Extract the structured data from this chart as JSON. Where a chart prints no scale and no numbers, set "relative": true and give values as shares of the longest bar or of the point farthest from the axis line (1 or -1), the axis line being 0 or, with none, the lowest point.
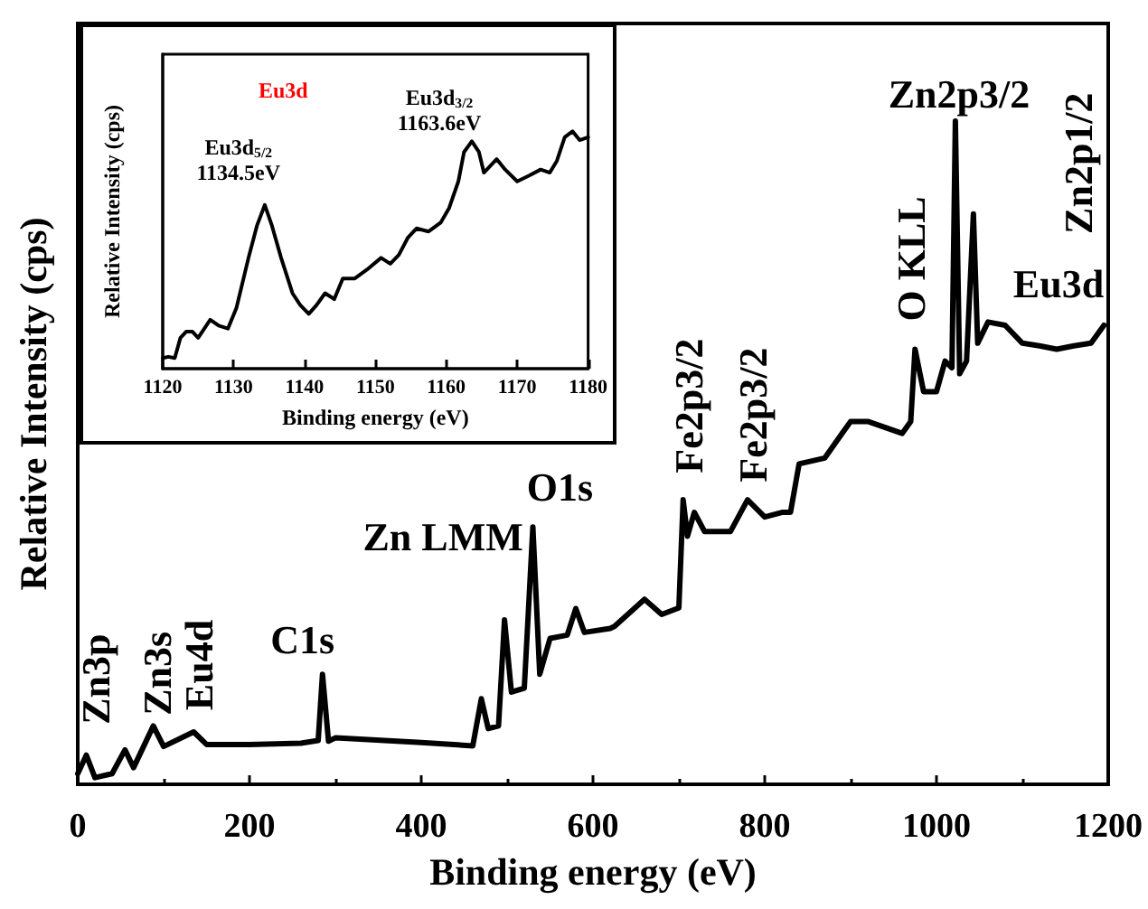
{
  "chart_data": [
    {
      "type": "line",
      "xlabel": "Binding energy (eV)",
      "ylabel": "Relative Intensity (cps)",
      "relative": true,
      "marker": "none",
      "xlim": [
        0,
        1200
      ],
      "xticks": [
        0,
        200,
        400,
        600,
        800,
        1000,
        1200
      ],
      "series": [
        {
          "color": "#000000",
          "x": [
            0,
            10,
            20,
            40,
            55,
            65,
            88,
            100,
            135,
            150,
            200,
            260,
            280,
            285,
            292,
            300,
            400,
            460,
            470,
            478,
            490,
            497,
            505,
            520,
            530,
            538,
            550,
            570,
            580,
            590,
            620,
            625,
            660,
            680,
            700,
            705,
            710,
            718,
            730,
            760,
            780,
            800,
            820,
            830,
            840,
            870,
            890,
            900,
            920,
            960,
            970,
            975,
            985,
            1000,
            1010,
            1018,
            1022,
            1027,
            1035,
            1043,
            1048,
            1060,
            1080,
            1100,
            1120,
            1140,
            1160,
            1180,
            1195
          ],
          "values": [
            0.016,
            0.044,
            0.01,
            0.016,
            0.052,
            0.025,
            0.088,
            0.057,
            0.079,
            0.06,
            0.06,
            0.062,
            0.066,
            0.166,
            0.065,
            0.07,
            0.063,
            0.058,
            0.129,
            0.084,
            0.088,
            0.248,
            0.139,
            0.145,
            0.388,
            0.166,
            0.22,
            0.225,
            0.265,
            0.229,
            0.235,
            0.238,
            0.279,
            0.256,
            0.266,
            0.429,
            0.374,
            0.41,
            0.381,
            0.381,
            0.429,
            0.403,
            0.41,
            0.41,
            0.483,
            0.492,
            0.529,
            0.547,
            0.547,
            0.529,
            0.547,
            0.656,
            0.592,
            0.592,
            0.638,
            0.628,
            1.0,
            0.619,
            0.638,
            0.86,
            0.665,
            0.697,
            0.692,
            0.665,
            0.661,
            0.656,
            0.661,
            0.665,
            0.692
          ]
        }
      ],
      "annotations": [
        {
          "text": "Zn3p",
          "x": 10,
          "y": 0.044
        },
        {
          "text": "Zn3s",
          "x": 88,
          "y": 0.088
        },
        {
          "text": "Eu4d",
          "x": 135,
          "y": 0.079
        },
        {
          "text": "C1s",
          "x": 285,
          "y": 0.166
        },
        {
          "text": "Zn LMM",
          "x": 497,
          "y": 0.248
        },
        {
          "text": "O1s",
          "x": 530,
          "y": 0.388
        },
        {
          "text": "Fe2p3/2",
          "x": 705,
          "y": 0.429
        },
        {
          "text": "Fe2p3/2",
          "x": 780,
          "y": 0.429
        },
        {
          "text": "O KLL",
          "x": 975,
          "y": 0.656
        },
        {
          "text": "Zn2p3/2",
          "x": 1022,
          "y": 1.0
        },
        {
          "text": "Zn2p1/2",
          "x": 1043,
          "y": 0.86
        },
        {
          "text": "Eu3d",
          "x": 1100,
          "y": 0.665
        }
      ]
    },
    {
      "type": "line",
      "title": "Eu3d",
      "xlabel": "Binding energy (eV)",
      "ylabel": "Relative Intensity (cps)",
      "relative": true,
      "marker": "none",
      "xlim": [
        1120,
        1180
      ],
      "xticks": [
        1120,
        1130,
        1140,
        1150,
        1160,
        1170,
        1180
      ],
      "series": [
        {
          "color": "#000000",
          "x": [
            1120,
            1120.8,
            1121.7,
            1122.5,
            1123.3,
            1124.2,
            1125,
            1126.7,
            1127.9,
            1129.2,
            1130.4,
            1132.1,
            1133.3,
            1134.4,
            1135.4,
            1136.7,
            1138.3,
            1139.4,
            1140.6,
            1141.7,
            1142.9,
            1144.2,
            1145.4,
            1147.1,
            1148.8,
            1150.8,
            1152.1,
            1153.3,
            1154.6,
            1155.8,
            1157.5,
            1159.2,
            1160.4,
            1161.7,
            1162.5,
            1163.6,
            1164.6,
            1165.3,
            1167.1,
            1168.3,
            1170,
            1171.7,
            1173.3,
            1174.6,
            1175.6,
            1176.7,
            1177.8,
            1178.8,
            1180
          ],
          "values": [
            0.045,
            0.05,
            0.045,
            0.13,
            0.156,
            0.156,
            0.13,
            0.206,
            0.181,
            0.169,
            0.256,
            0.467,
            0.603,
            0.69,
            0.603,
            0.467,
            0.318,
            0.268,
            0.231,
            0.268,
            0.318,
            0.293,
            0.38,
            0.38,
            0.417,
            0.467,
            0.442,
            0.479,
            0.553,
            0.591,
            0.578,
            0.615,
            0.677,
            0.789,
            0.913,
            0.958,
            0.913,
            0.826,
            0.883,
            0.839,
            0.789,
            0.814,
            0.839,
            0.826,
            0.876,
            0.975,
            1.0,
            0.963,
            0.975
          ]
        }
      ],
      "annotations": [
        {
          "text": "Eu3d$_{5/2}$\n1134.5eV",
          "x": 1134.5,
          "y": 0.69
        },
        {
          "text": "Eu3d$_{3/2}$\n1163.6eV",
          "x": 1163.6,
          "y": 0.958
        }
      ]
    }
  ]
}
